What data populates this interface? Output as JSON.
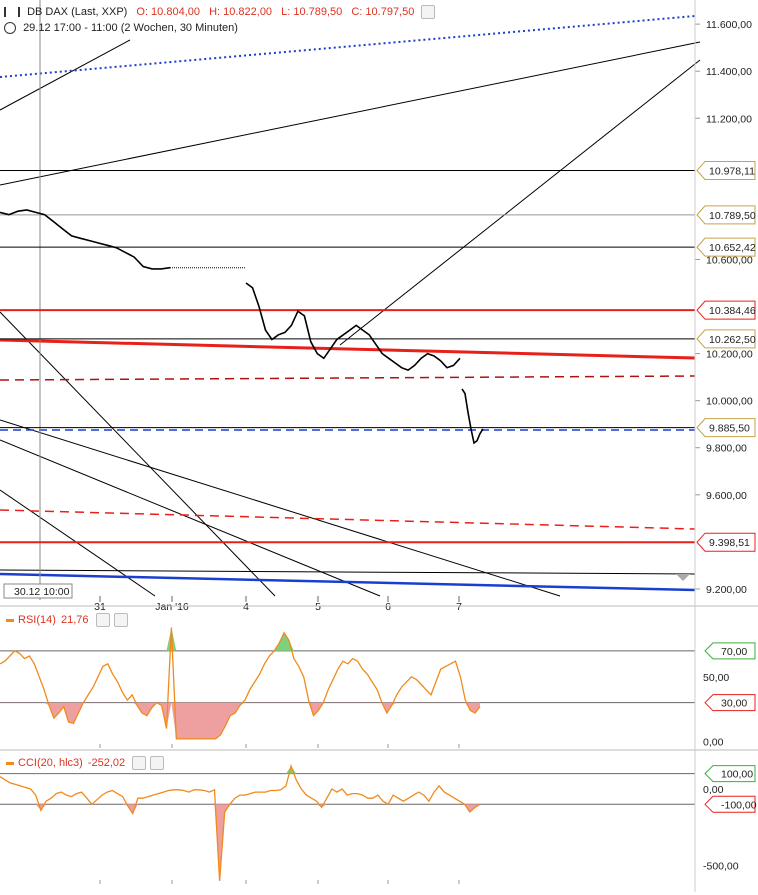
{
  "header": {
    "title": "DB DAX (Last, XXP)",
    "ohlc": [
      "O: 10.804,00",
      "H: 10.822,00",
      "L: 10.789,50",
      "C: 10.797,50"
    ],
    "range": "29.12 17:00 - 11:00 (2 Wochen, 30 Minuten)"
  },
  "crosshair_label": "30.12 10:00",
  "colors": {
    "price": "#000000",
    "red": "#e8201a",
    "darkred": "#b01010",
    "blue": "#1a3fcf",
    "orange": "#f08a1c",
    "green": "#7fd07f",
    "pink": "#eea0a0"
  },
  "chart_data": [
    {
      "type": "line",
      "title": "DB DAX (Last, XXP)",
      "xlabel": "",
      "ylabel": "",
      "x_ticks": [
        "31",
        "Jan '16",
        "4",
        "5",
        "6",
        "7"
      ],
      "y_ticks": [
        "11.600,00",
        "11.400,00",
        "11.200,00",
        "10.600,00",
        "10.200,00",
        "10.000,00",
        "9.800,00",
        "9.600,00",
        "9.200,00"
      ],
      "ylim": [
        9170,
        11660
      ],
      "series": [
        {
          "values": [
            10800,
            10790,
            10805,
            10810,
            10800,
            10790,
            10760,
            10730,
            10700,
            10690,
            10680,
            10670,
            10660,
            10650,
            10630,
            10610,
            10570,
            10560,
            10560,
            10565
          ]
        },
        {
          "values": [
            10500,
            10480,
            10400,
            10300,
            10260,
            10280,
            10290,
            10320,
            10380,
            10360,
            10250,
            10200,
            10180,
            10220,
            10260,
            10280,
            10300,
            10320,
            10300,
            10280,
            10240,
            10200,
            10180,
            10160,
            10140,
            10130,
            10150,
            10180,
            10200,
            10190,
            10170,
            10140,
            10150,
            10180
          ]
        },
        {
          "values": [
            10050,
            10030,
            9950,
            9880,
            9820,
            9830,
            9860,
            9880
          ]
        }
      ],
      "levels": [
        {
          "value": 10978.11,
          "label": "10.978,11",
          "style": "black"
        },
        {
          "value": 10789.5,
          "label": "10.789,50",
          "style": "gray"
        },
        {
          "value": 10652.42,
          "label": "10.652,42",
          "style": "black"
        },
        {
          "value": 10384.46,
          "label": "10.384,46",
          "style": "red"
        },
        {
          "value": 10262.5,
          "label": "10.262,50",
          "style": "black"
        },
        {
          "value": 9885.5,
          "label": "9.885,50",
          "style": "black"
        },
        {
          "value": 9398.51,
          "label": "9.398,51",
          "style": "red"
        }
      ]
    },
    {
      "type": "area",
      "title": "RSI(14)",
      "current_value": "21,76",
      "y_ticks": [
        "50,00",
        "0,00"
      ],
      "level_labels": [
        "70,00",
        "30,00"
      ],
      "levels": [
        70,
        30
      ],
      "ylim": [
        -5,
        100
      ],
      "values": [
        60,
        62,
        66,
        70,
        68,
        64,
        66,
        60,
        50,
        40,
        28,
        18,
        22,
        27,
        15,
        14,
        22,
        30,
        36,
        42,
        50,
        58,
        60,
        52,
        46,
        38,
        32,
        36,
        28,
        22,
        20,
        26,
        30,
        28,
        10,
        88,
        2,
        2,
        2,
        2,
        2,
        2,
        2,
        2,
        2,
        5,
        12,
        20,
        22,
        28,
        32,
        40,
        46,
        52,
        60,
        66,
        70,
        76,
        84,
        78,
        64,
        58,
        50,
        32,
        20,
        24,
        30,
        40,
        48,
        56,
        62,
        60,
        64,
        62,
        56,
        52,
        46,
        40,
        30,
        22,
        28,
        36,
        42,
        46,
        50,
        48,
        44,
        40,
        36,
        46,
        56,
        58,
        60,
        62,
        50,
        32,
        24,
        22,
        27
      ]
    },
    {
      "type": "area",
      "title": "CCI(20, hlc3)",
      "current_value": "-252,02",
      "y_ticks": [
        "0,00",
        "-500,00"
      ],
      "level_labels": [
        "100,00",
        "-100,00"
      ],
      "levels": [
        100,
        -100
      ],
      "ylim": [
        -620,
        150
      ],
      "values": [
        80,
        60,
        40,
        30,
        20,
        10,
        0,
        -40,
        -140,
        -80,
        -60,
        -30,
        -20,
        -40,
        -50,
        -30,
        -20,
        -60,
        -100,
        -70,
        -40,
        -20,
        -10,
        -30,
        -50,
        -110,
        -160,
        -60,
        -60,
        -50,
        -40,
        -30,
        -20,
        -10,
        -5,
        -5,
        -10,
        -20,
        -5,
        -5,
        -10,
        -20,
        -5,
        -600,
        -150,
        -100,
        -60,
        -40,
        -40,
        -30,
        -20,
        -20,
        -20,
        -10,
        -10,
        -5,
        20,
        150,
        60,
        0,
        -40,
        -60,
        -80,
        -120,
        -60,
        0,
        -20,
        0,
        -40,
        -30,
        -30,
        -40,
        -60,
        -60,
        -40,
        -80,
        -100,
        -40,
        -60,
        -80,
        -60,
        -40,
        -20,
        -40,
        -80,
        -20,
        20,
        -20,
        -40,
        -60,
        -80,
        -100,
        -150,
        -120,
        -100
      ]
    }
  ]
}
